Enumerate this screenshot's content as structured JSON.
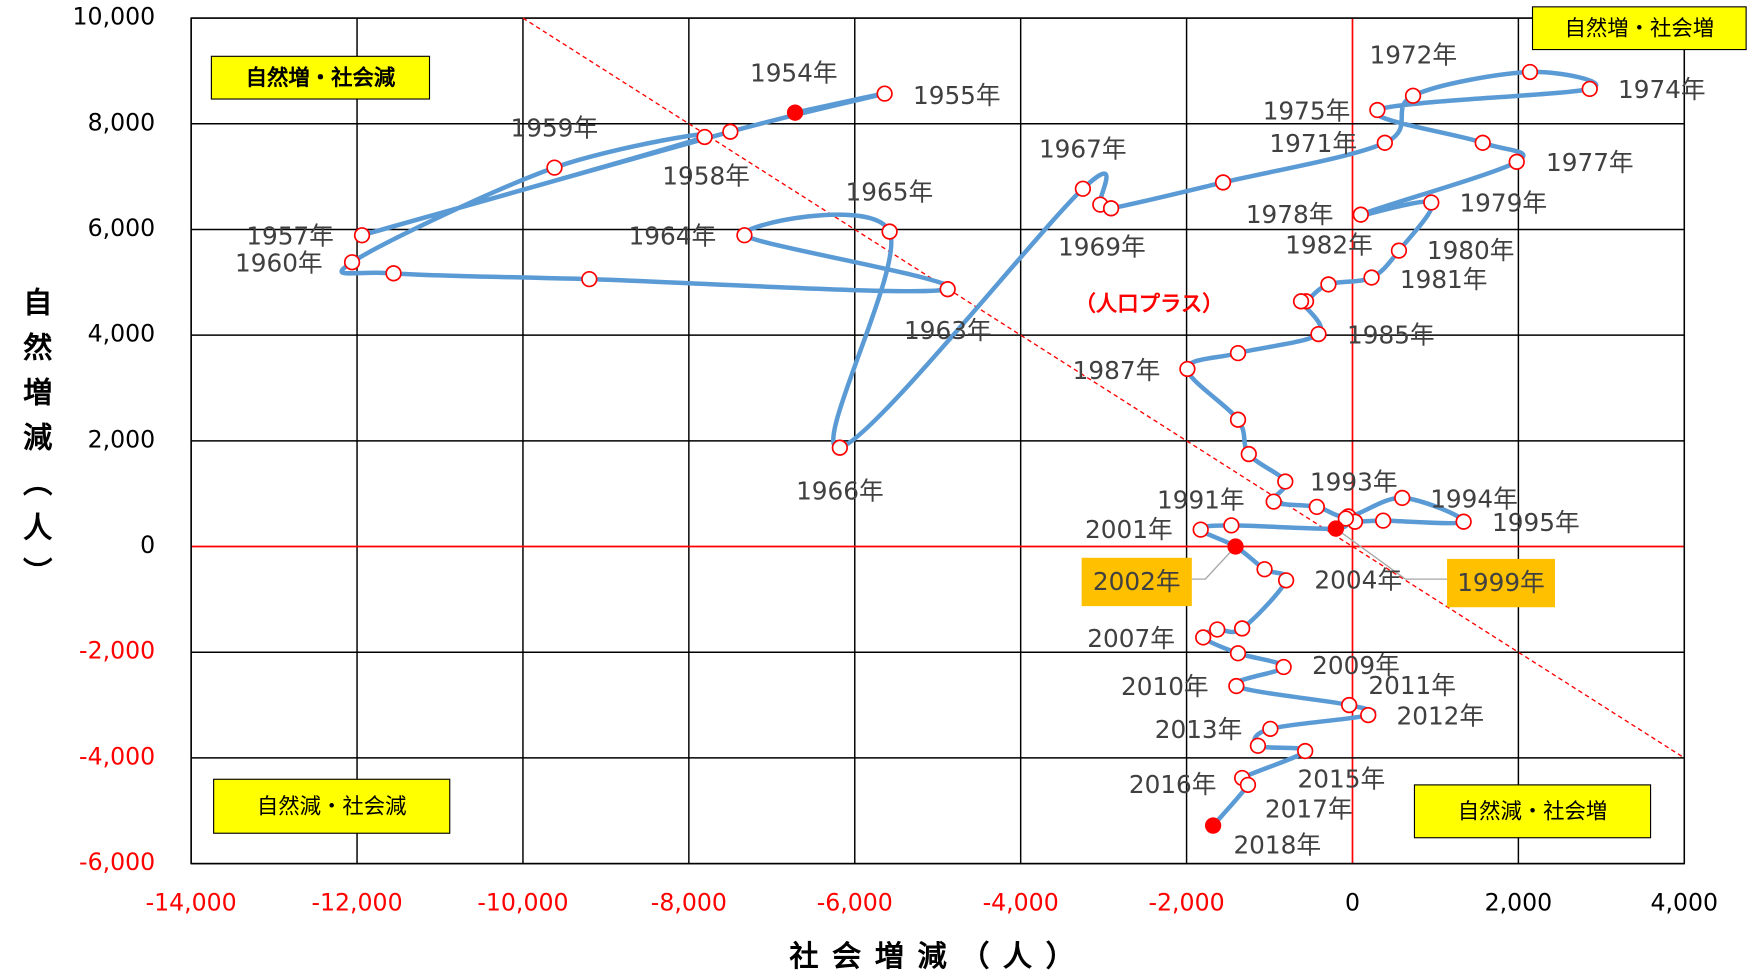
{
  "chart_data": {
    "type": "scatter",
    "x_label": "社会増減（人）",
    "y_label": "自然増減（人）",
    "xlim": [
      -14000,
      4000
    ],
    "ylim": [
      -6000,
      10000
    ],
    "xticks": [
      {
        "value": -14000,
        "label": "-14,000"
      },
      {
        "value": -12000,
        "label": "-12,000"
      },
      {
        "value": -10000,
        "label": "-10,000"
      },
      {
        "value": -8000,
        "label": "-8,000"
      },
      {
        "value": -6000,
        "label": "-6,000"
      },
      {
        "value": -4000,
        "label": "-4,000"
      },
      {
        "value": -2000,
        "label": "-2,000"
      },
      0,
      {
        "value": 2000,
        "label": "2,000"
      },
      {
        "value": 4000,
        "label": "4,000"
      }
    ],
    "yticks": [
      {
        "value": -6000,
        "label": "-6,000"
      },
      {
        "value": -4000,
        "label": "-4,000"
      },
      {
        "value": -2000,
        "label": "-2,000"
      },
      0,
      {
        "value": 2000,
        "label": "2,000"
      },
      {
        "value": 4000,
        "label": "4,000"
      },
      {
        "value": 6000,
        "label": "6,000"
      },
      {
        "value": 8000,
        "label": "8,000"
      },
      {
        "value": 10000,
        "label": "10,000"
      }
    ],
    "grid": true,
    "negative_tick_color": "#ff0000",
    "reference_color": "#ff0000",
    "line_color": "#5b9bd5",
    "marker_edge": "#ff0000",
    "x": [
      -6720,
      -5640,
      -7500,
      -11940,
      -7810,
      -9620,
      -12060,
      -11560,
      -9200,
      -4880,
      -7330,
      -5580,
      -6180,
      -3250,
      -3040,
      -2910,
      -1560,
      390,
      730,
      2140,
      2860,
      300,
      1570,
      1980,
      100,
      950,
      560,
      230,
      -290,
      -560,
      -620,
      -410,
      -1380,
      -1990,
      -1380,
      -1250,
      -810,
      -950,
      -430,
      -50,
      600,
      1340,
      370,
      30,
      -80,
      -200,
      -1460,
      -1830,
      -1410,
      -1060,
      -800,
      -1330,
      -1630,
      -1800,
      -1380,
      -830,
      -1400,
      -40,
      190,
      -990,
      -1140,
      -570,
      -1330,
      -1260,
      -1680
    ],
    "values": [
      8210,
      8570,
      7850,
      5890,
      7750,
      7170,
      5380,
      5170,
      5060,
      4870,
      5890,
      5960,
      1870,
      6770,
      6470,
      6400,
      6890,
      7640,
      8530,
      8980,
      8660,
      8260,
      7640,
      7280,
      6280,
      6510,
      5600,
      5090,
      4960,
      4640,
      4640,
      4020,
      3660,
      3360,
      2400,
      1750,
      1230,
      850,
      750,
      570,
      920,
      470,
      490,
      470,
      530,
      340,
      400,
      320,
      0,
      -430,
      -640,
      -1550,
      -1570,
      -1720,
      -2020,
      -2280,
      -2640,
      -3000,
      -3190,
      -3450,
      -3770,
      -3870,
      -4380,
      -4510,
      -5280
    ],
    "point_labels": [
      "1954年",
      "1955年",
      null,
      "1957年",
      "1958年",
      "1959年",
      "1960年",
      null,
      null,
      "1963年",
      "1964年",
      "1965年",
      "1966年",
      "1967年",
      null,
      "1969年",
      null,
      "1971年",
      "1972年",
      null,
      "1974年",
      "1975年",
      null,
      "1977年",
      "1978年",
      "1979年",
      "1980年",
      "1981年",
      "1982年",
      null,
      null,
      "1985年",
      null,
      "1987年",
      null,
      null,
      null,
      "1991年",
      null,
      "1993年",
      "1994年",
      "1995年",
      null,
      null,
      null,
      "1999年",
      null,
      "2001年",
      "2002年",
      null,
      "2004年",
      null,
      null,
      "2007年",
      null,
      "2009年",
      "2010年",
      "2011年",
      "2012年",
      "2013年",
      null,
      "2015年",
      "2016年",
      "2017年",
      "2018年"
    ],
    "marker_fills": [
      "#ff0000",
      "#ffffff",
      "#ffffff",
      "#ffffff",
      "#ffffff",
      "#ffffff",
      "#ffffff",
      "#ffffff",
      "#ffffff",
      "#ffffff",
      "#ffffff",
      "#ffffff",
      "#ffffff",
      "#ffffff",
      "#ffffff",
      "#ffffff",
      "#ffffff",
      "#ffffff",
      "#ffffff",
      "#ffffff",
      "#ffffff",
      "#ffffff",
      "#ffffff",
      "#ffffff",
      "#ffffff",
      "#ffffff",
      "#ffffff",
      "#ffffff",
      "#ffffff",
      "#ffffff",
      "#ffffff",
      "#ffffff",
      "#ffffff",
      "#ffffff",
      "#ffffff",
      "#ffffff",
      "#ffffff",
      "#ffffff",
      "#ffffff",
      "#ffffff",
      "#ffffff",
      "#ffffff",
      "#ffffff",
      "#ffffff",
      "#ffffff",
      "#ff0000",
      "#ffffff",
      "#ffffff",
      "#ff0000",
      "#ffffff",
      "#ffffff",
      "#ffffff",
      "#ffffff",
      "#ffffff",
      "#ffffff",
      "#ffffff",
      "#ffffff",
      "#ffffff",
      "#ffffff",
      "#ffffff",
      "#ffffff",
      "#ffffff",
      "#ffffff",
      "#ffffff",
      "#ff0000"
    ],
    "annotations": [
      "自然増・社会減",
      "自然増・社会増",
      "自然減・社会減",
      "自然減・社会増",
      "（人口プラス）"
    ]
  }
}
